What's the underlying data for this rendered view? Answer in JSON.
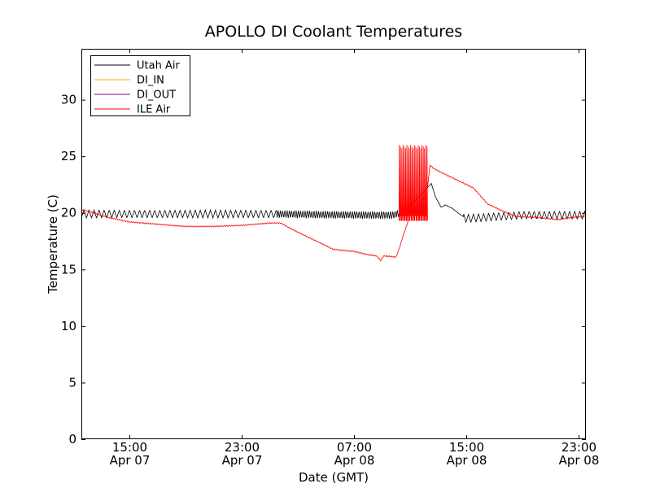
{
  "chart_data": {
    "type": "line",
    "title": "APOLLO DI Coolant Temperatures",
    "xlabel": "Date (GMT)",
    "ylabel": "Temperature (C)",
    "ylim": [
      0,
      34.5
    ],
    "xlim_hours": [
      11.6,
      47.5
    ],
    "grid": false,
    "legend_position": "top-left",
    "x_ticks": [
      {
        "hour": 15,
        "time": "15:00",
        "date": "Apr 07"
      },
      {
        "hour": 23,
        "time": "23:00",
        "date": "Apr 07"
      },
      {
        "hour": 31,
        "time": "07:00",
        "date": "Apr 08"
      },
      {
        "hour": 39,
        "time": "15:00",
        "date": "Apr 08"
      },
      {
        "hour": 47,
        "time": "23:00",
        "date": "Apr 08"
      }
    ],
    "y_ticks": [
      0,
      5,
      10,
      15,
      20,
      25,
      30
    ],
    "series": [
      {
        "name": "Utah Air",
        "color": "#000000",
        "pattern": "oscillating ~19.5-20.2 C baseline, rise to ~22.6 C near 36.5 h, decay to ~19.5 C by 39 h",
        "points": [
          [
            11.6,
            19.9
          ],
          [
            20,
            19.9
          ],
          [
            25,
            19.9
          ],
          [
            32,
            19.8
          ],
          [
            33.8,
            19.8
          ],
          [
            34.5,
            20.1
          ],
          [
            35.3,
            21.0
          ],
          [
            35.8,
            21.7
          ],
          [
            36.2,
            22.2
          ],
          [
            36.5,
            22.6
          ],
          [
            36.8,
            21.4
          ],
          [
            37.2,
            20.5
          ],
          [
            37.5,
            20.7
          ],
          [
            38,
            20.4
          ],
          [
            38.5,
            19.9
          ],
          [
            39,
            19.5
          ],
          [
            43,
            19.8
          ],
          [
            47.5,
            19.8
          ]
        ]
      },
      {
        "name": "DI_IN",
        "color": "#ffa500",
        "points": []
      },
      {
        "name": "DI_OUT",
        "color": "#800080",
        "points": []
      },
      {
        "name": "ILE Air",
        "color": "#ff0000",
        "pattern": "slow drift from ~20.3 C down to ~16 C around 08:00 Apr 08, then oscillations 19-26 C near 34-36 h, then decay toward ~19.6 C",
        "points": [
          [
            11.6,
            20.3
          ],
          [
            12.5,
            20.0
          ],
          [
            13.5,
            19.6
          ],
          [
            15,
            19.2
          ],
          [
            17,
            19.0
          ],
          [
            19,
            18.8
          ],
          [
            21,
            18.8
          ],
          [
            23,
            18.9
          ],
          [
            25,
            19.1
          ],
          [
            25.8,
            19.1
          ],
          [
            26.5,
            18.6
          ],
          [
            27.5,
            18.0
          ],
          [
            28.5,
            17.4
          ],
          [
            29.5,
            16.8
          ],
          [
            30,
            16.7
          ],
          [
            31,
            16.6
          ],
          [
            32,
            16.3
          ],
          [
            32.6,
            16.2
          ],
          [
            32.9,
            15.8
          ],
          [
            33.1,
            16.2
          ],
          [
            34,
            16.1
          ],
          [
            34.2,
            16.8
          ],
          [
            34.5,
            18.0
          ],
          [
            35,
            19.8
          ],
          [
            35.8,
            21.0
          ],
          [
            36.2,
            21.8
          ],
          [
            36.4,
            24.2
          ],
          [
            36.7,
            23.9
          ],
          [
            37.5,
            23.4
          ],
          [
            38.5,
            22.8
          ],
          [
            39.5,
            22.2
          ],
          [
            40,
            21.5
          ],
          [
            40.5,
            20.8
          ],
          [
            41.5,
            20.2
          ],
          [
            42.5,
            19.7
          ],
          [
            44,
            19.6
          ],
          [
            45.5,
            19.4
          ],
          [
            46.5,
            19.6
          ],
          [
            47.5,
            19.7
          ]
        ],
        "spikes": {
          "from_hour": 34.2,
          "to_hour": 36.2,
          "low": 19.3,
          "high": 26.0
        }
      }
    ]
  }
}
